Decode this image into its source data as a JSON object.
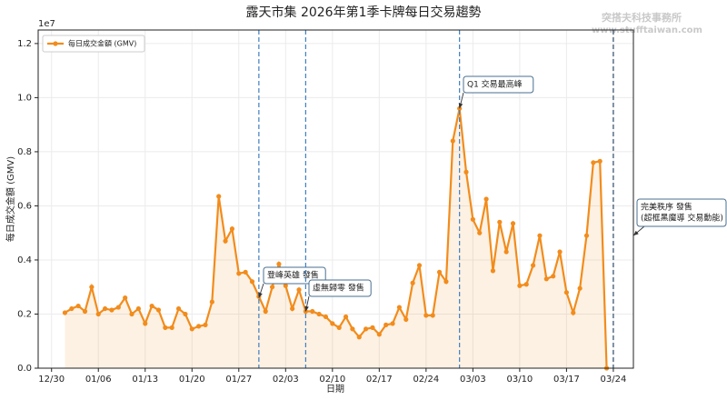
{
  "chart_data": {
    "type": "line",
    "title": "露天市集 2026年第1季卡牌每日交易趨勢",
    "watermark": [
      "突搭夫科技事務所",
      "www.stufftaiwan.com"
    ],
    "x_label": "日期",
    "y_label": "每日成交金額 (GMV)",
    "y_offset_label": "1e7",
    "legend_position": "upper left",
    "grid": true,
    "fill": true,
    "x": [
      "01/01",
      "01/02",
      "01/03",
      "01/04",
      "01/05",
      "01/06",
      "01/07",
      "01/08",
      "01/09",
      "01/10",
      "01/11",
      "01/12",
      "01/13",
      "01/14",
      "01/15",
      "01/16",
      "01/17",
      "01/18",
      "01/19",
      "01/20",
      "01/21",
      "01/22",
      "01/23",
      "01/24",
      "01/25",
      "01/26",
      "01/27",
      "01/28",
      "01/29",
      "01/30",
      "01/31",
      "02/01",
      "02/02",
      "02/03",
      "02/04",
      "02/05",
      "02/06",
      "02/07",
      "02/08",
      "02/09",
      "02/10",
      "02/11",
      "02/12",
      "02/13",
      "02/14",
      "02/15",
      "02/16",
      "02/17",
      "02/18",
      "02/19",
      "02/20",
      "02/21",
      "02/22",
      "02/23",
      "02/24",
      "02/25",
      "02/26",
      "02/27",
      "02/28",
      "03/01",
      "03/02",
      "03/03",
      "03/04",
      "03/05",
      "03/06",
      "03/07",
      "03/08",
      "03/09",
      "03/10",
      "03/11",
      "03/12",
      "03/13",
      "03/14",
      "03/15",
      "03/16",
      "03/17",
      "03/18",
      "03/19",
      "03/20",
      "03/21",
      "03/22",
      "03/23"
    ],
    "series": [
      {
        "name": "每日成交金額 (GMV)",
        "color": "#f28c1c",
        "values": [
          0.205,
          0.22,
          0.23,
          0.21,
          0.3,
          0.2,
          0.22,
          0.215,
          0.225,
          0.26,
          0.2,
          0.22,
          0.165,
          0.23,
          0.215,
          0.15,
          0.15,
          0.22,
          0.2,
          0.145,
          0.155,
          0.16,
          0.245,
          0.635,
          0.47,
          0.515,
          0.35,
          0.355,
          0.32,
          0.265,
          0.21,
          0.3,
          0.385,
          0.305,
          0.22,
          0.29,
          0.21,
          0.21,
          0.2,
          0.19,
          0.165,
          0.15,
          0.19,
          0.145,
          0.115,
          0.145,
          0.15,
          0.125,
          0.16,
          0.165,
          0.225,
          0.18,
          0.315,
          0.38,
          0.195,
          0.195,
          0.355,
          0.32,
          0.84,
          0.96,
          0.725,
          0.55,
          0.5,
          0.625,
          0.36,
          0.54,
          0.43,
          0.535,
          0.305,
          0.31,
          0.38,
          0.49,
          0.33,
          0.34,
          0.43,
          0.28,
          0.205,
          0.295,
          0.49,
          0.76,
          0.765,
          0
        ]
      }
    ],
    "xlim": [
      "12/28",
      "03/27"
    ],
    "xticks": [
      "12/30",
      "01/06",
      "01/13",
      "01/20",
      "01/27",
      "02/03",
      "02/10",
      "02/17",
      "02/24",
      "03/03",
      "03/10",
      "03/17",
      "03/24"
    ],
    "ylim": [
      0,
      1.25
    ],
    "yticks": [
      {
        "value": 0,
        "label": "0.0"
      },
      0.2,
      0.4,
      0.6,
      0.8,
      {
        "value": 1,
        "label": "1.0"
      },
      1.2
    ],
    "annotations": [
      {
        "x": "01/30",
        "y": 0.26,
        "text": [
          "登峰英雄 發售"
        ],
        "line_color": "#3f7fbf"
      },
      {
        "x": "02/06",
        "y": 0.21,
        "text": [
          "虛無歸零 發售"
        ],
        "line_color": "#3f7fbf"
      },
      {
        "x": "03/01",
        "y": 0.96,
        "text": [
          "Q1 交易最高峰"
        ],
        "line_color": "#3f7fbf"
      },
      {
        "x": "03/24",
        "y": 0.49,
        "text": [
          "完美秩序 發售",
          "(超框黑魔導 交易動能)"
        ],
        "line_color": "#2d4a6a"
      }
    ]
  }
}
